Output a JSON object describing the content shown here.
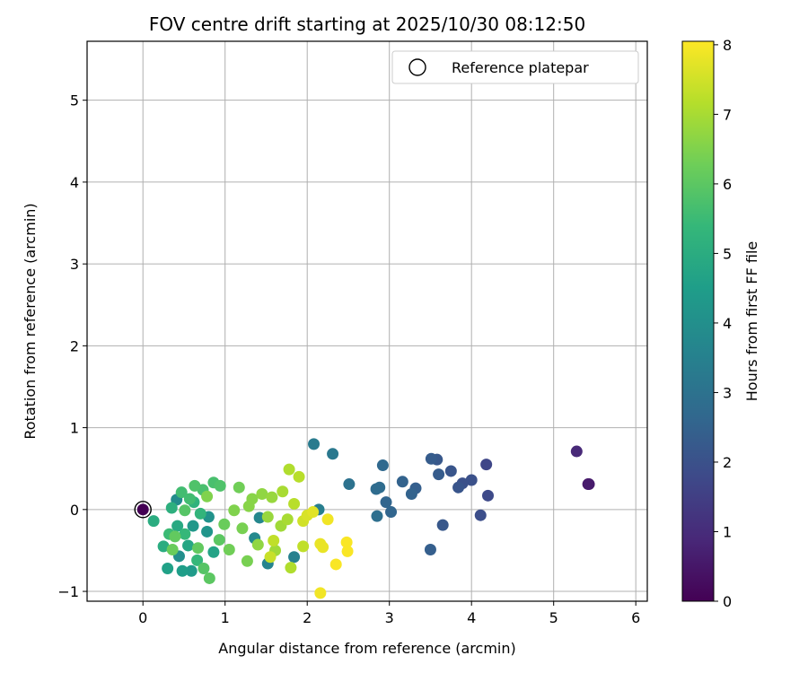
{
  "chart_data": {
    "type": "scatter",
    "title": "FOV centre drift starting at 2025/10/30 08:12:50",
    "xlabel": "Angular distance from reference (arcmin)",
    "ylabel": "Rotation from reference (arcmin)",
    "xlim": [
      -0.68,
      6.14
    ],
    "ylim": [
      -1.12,
      5.72
    ],
    "xticks": [
      0,
      1,
      2,
      3,
      4,
      5,
      6
    ],
    "yticks": [
      -1,
      0,
      1,
      2,
      3,
      4,
      5
    ],
    "grid": true,
    "legend": {
      "position": "top-right",
      "entries": [
        "Reference platepar"
      ]
    },
    "reference_point": {
      "x": 0,
      "y": 0,
      "label": "Reference platepar"
    },
    "colorbar": {
      "label": "Hours from first FF file",
      "range": [
        0,
        8.05
      ],
      "ticks": [
        0,
        1,
        2,
        3,
        4,
        5,
        6,
        7,
        8
      ],
      "colormap": "viridis"
    },
    "points": [
      {
        "x": 0.0,
        "y": 0.0,
        "h": 0.0
      },
      {
        "x": 5.42,
        "y": 0.31,
        "h": 0.5
      },
      {
        "x": 5.43,
        "y": 0.31,
        "h": 0.6
      },
      {
        "x": 5.28,
        "y": 0.71,
        "h": 0.9
      },
      {
        "x": 4.18,
        "y": 0.55,
        "h": 1.7
      },
      {
        "x": 4.2,
        "y": 0.17,
        "h": 1.8
      },
      {
        "x": 4.11,
        "y": -0.07,
        "h": 1.9
      },
      {
        "x": 4.0,
        "y": 0.36,
        "h": 2.0
      },
      {
        "x": 3.89,
        "y": 0.32,
        "h": 2.0
      },
      {
        "x": 3.84,
        "y": 0.27,
        "h": 2.1
      },
      {
        "x": 3.75,
        "y": 0.47,
        "h": 2.1
      },
      {
        "x": 3.65,
        "y": -0.19,
        "h": 2.2
      },
      {
        "x": 3.58,
        "y": 0.61,
        "h": 2.2
      },
      {
        "x": 3.6,
        "y": 0.43,
        "h": 2.3
      },
      {
        "x": 3.51,
        "y": 0.62,
        "h": 2.3
      },
      {
        "x": 3.5,
        "y": -0.49,
        "h": 2.4
      },
      {
        "x": 3.32,
        "y": 0.26,
        "h": 2.4
      },
      {
        "x": 3.27,
        "y": 0.19,
        "h": 2.5
      },
      {
        "x": 3.16,
        "y": 0.34,
        "h": 2.5
      },
      {
        "x": 3.02,
        "y": -0.03,
        "h": 2.6
      },
      {
        "x": 2.96,
        "y": 0.09,
        "h": 2.6
      },
      {
        "x": 2.92,
        "y": 0.54,
        "h": 2.7
      },
      {
        "x": 2.88,
        "y": 0.27,
        "h": 2.8
      },
      {
        "x": 2.84,
        "y": 0.25,
        "h": 2.8
      },
      {
        "x": 2.85,
        "y": -0.08,
        "h": 2.9
      },
      {
        "x": 2.51,
        "y": 0.31,
        "h": 3.0
      },
      {
        "x": 2.31,
        "y": 0.68,
        "h": 3.2
      },
      {
        "x": 2.08,
        "y": 0.8,
        "h": 3.3
      },
      {
        "x": 2.14,
        "y": 0.0,
        "h": 3.4
      },
      {
        "x": 1.84,
        "y": -0.58,
        "h": 3.5
      },
      {
        "x": 1.52,
        "y": -0.66,
        "h": 3.6
      },
      {
        "x": 1.42,
        "y": -0.1,
        "h": 3.7
      },
      {
        "x": 1.36,
        "y": -0.35,
        "h": 3.8
      },
      {
        "x": 0.41,
        "y": 0.12,
        "h": 3.9
      },
      {
        "x": 0.44,
        "y": -0.57,
        "h": 4.0
      },
      {
        "x": 0.8,
        "y": -0.09,
        "h": 4.1
      },
      {
        "x": 0.78,
        "y": -0.27,
        "h": 4.2
      },
      {
        "x": 0.61,
        "y": -0.2,
        "h": 4.3
      },
      {
        "x": 0.59,
        "y": -0.75,
        "h": 4.4
      },
      {
        "x": 0.48,
        "y": -0.75,
        "h": 4.5
      },
      {
        "x": 0.3,
        "y": -0.72,
        "h": 4.6
      },
      {
        "x": 0.86,
        "y": -0.52,
        "h": 4.7
      },
      {
        "x": 0.55,
        "y": -0.44,
        "h": 4.8
      },
      {
        "x": 0.42,
        "y": -0.2,
        "h": 4.9
      },
      {
        "x": 0.25,
        "y": -0.45,
        "h": 5.0
      },
      {
        "x": 0.13,
        "y": -0.14,
        "h": 5.0
      },
      {
        "x": 0.35,
        "y": 0.02,
        "h": 5.1
      },
      {
        "x": 0.62,
        "y": 0.09,
        "h": 5.2
      },
      {
        "x": 0.7,
        "y": -0.05,
        "h": 5.3
      },
      {
        "x": 0.51,
        "y": -0.3,
        "h": 5.4
      },
      {
        "x": 0.66,
        "y": -0.62,
        "h": 5.4
      },
      {
        "x": 0.32,
        "y": -0.3,
        "h": 5.5
      },
      {
        "x": 0.47,
        "y": 0.21,
        "h": 5.6
      },
      {
        "x": 0.57,
        "y": 0.13,
        "h": 5.6
      },
      {
        "x": 0.73,
        "y": 0.24,
        "h": 5.7
      },
      {
        "x": 0.86,
        "y": 0.33,
        "h": 5.7
      },
      {
        "x": 0.94,
        "y": 0.29,
        "h": 5.8
      },
      {
        "x": 0.63,
        "y": 0.29,
        "h": 5.8
      },
      {
        "x": 0.51,
        "y": -0.01,
        "h": 5.9
      },
      {
        "x": 0.74,
        "y": -0.72,
        "h": 5.9
      },
      {
        "x": 0.81,
        "y": -0.84,
        "h": 6.0
      },
      {
        "x": 0.93,
        "y": -0.37,
        "h": 6.0
      },
      {
        "x": 0.67,
        "y": -0.47,
        "h": 6.1
      },
      {
        "x": 0.39,
        "y": -0.33,
        "h": 6.1
      },
      {
        "x": 0.36,
        "y": -0.49,
        "h": 6.2
      },
      {
        "x": 0.99,
        "y": -0.18,
        "h": 6.2
      },
      {
        "x": 1.05,
        "y": -0.49,
        "h": 6.3
      },
      {
        "x": 1.17,
        "y": 0.27,
        "h": 6.3
      },
      {
        "x": 1.21,
        "y": -0.23,
        "h": 6.4
      },
      {
        "x": 1.27,
        "y": -0.63,
        "h": 6.4
      },
      {
        "x": 0.78,
        "y": 0.16,
        "h": 6.5
      },
      {
        "x": 1.11,
        "y": -0.01,
        "h": 6.5
      },
      {
        "x": 1.29,
        "y": 0.04,
        "h": 6.6
      },
      {
        "x": 1.33,
        "y": 0.13,
        "h": 6.6
      },
      {
        "x": 1.4,
        "y": -0.43,
        "h": 6.7
      },
      {
        "x": 1.45,
        "y": 0.19,
        "h": 6.7
      },
      {
        "x": 1.52,
        "y": -0.09,
        "h": 6.8
      },
      {
        "x": 1.57,
        "y": 0.15,
        "h": 6.8
      },
      {
        "x": 1.61,
        "y": -0.5,
        "h": 6.9
      },
      {
        "x": 1.68,
        "y": -0.2,
        "h": 6.9
      },
      {
        "x": 1.7,
        "y": 0.22,
        "h": 7.0
      },
      {
        "x": 1.76,
        "y": -0.12,
        "h": 7.0
      },
      {
        "x": 1.78,
        "y": 0.49,
        "h": 7.1
      },
      {
        "x": 1.8,
        "y": -0.71,
        "h": 7.1
      },
      {
        "x": 1.84,
        "y": 0.07,
        "h": 7.2
      },
      {
        "x": 1.9,
        "y": 0.4,
        "h": 7.2
      },
      {
        "x": 1.95,
        "y": -0.45,
        "h": 7.3
      },
      {
        "x": 1.59,
        "y": -0.38,
        "h": 7.3
      },
      {
        "x": 1.55,
        "y": -0.58,
        "h": 7.4
      },
      {
        "x": 1.95,
        "y": -0.14,
        "h": 7.5
      },
      {
        "x": 2.0,
        "y": -0.07,
        "h": 7.6
      },
      {
        "x": 2.07,
        "y": -0.03,
        "h": 7.7
      },
      {
        "x": 2.16,
        "y": -0.42,
        "h": 7.8
      },
      {
        "x": 2.19,
        "y": -0.46,
        "h": 7.8
      },
      {
        "x": 2.16,
        "y": -1.02,
        "h": 7.9
      },
      {
        "x": 2.25,
        "y": -0.12,
        "h": 7.9
      },
      {
        "x": 2.35,
        "y": -0.67,
        "h": 8.0
      },
      {
        "x": 2.48,
        "y": -0.4,
        "h": 8.0
      },
      {
        "x": 2.49,
        "y": -0.51,
        "h": 8.0
      }
    ]
  }
}
